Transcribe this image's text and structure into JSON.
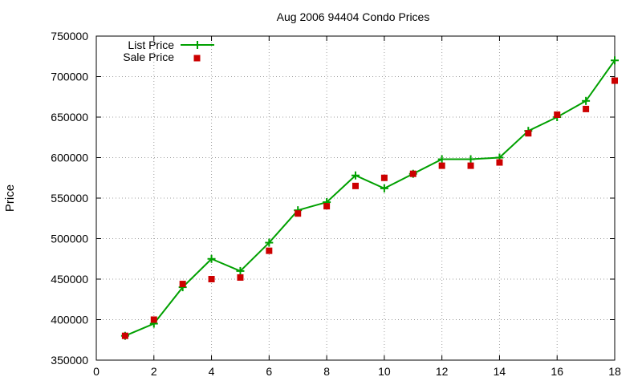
{
  "chart_data": {
    "type": "line",
    "title": "Aug 2006 94404 Condo Prices",
    "xlabel": "",
    "ylabel": "Price",
    "xlim": [
      0,
      18
    ],
    "ylim": [
      350000,
      750000
    ],
    "x_ticks": [
      0,
      2,
      4,
      6,
      8,
      10,
      12,
      14,
      16,
      18
    ],
    "y_ticks": [
      350000,
      400000,
      450000,
      500000,
      550000,
      600000,
      650000,
      700000,
      750000
    ],
    "grid": true,
    "legend_position": "top-left",
    "x": [
      1,
      2,
      3,
      4,
      5,
      6,
      7,
      8,
      9,
      10,
      11,
      12,
      13,
      14,
      15,
      16,
      17,
      18
    ],
    "series": [
      {
        "name": "List Price",
        "style": "line-with-plus-markers",
        "color": "#00a000",
        "values": [
          380000,
          395000,
          440000,
          475000,
          460000,
          495000,
          535000,
          545000,
          578000,
          562000,
          580000,
          598000,
          598000,
          600000,
          633000,
          650000,
          670000,
          720000
        ]
      },
      {
        "name": "Sale Price",
        "style": "square-markers",
        "color": "#cc0000",
        "values": [
          380000,
          400000,
          444000,
          450000,
          452000,
          485000,
          531000,
          540000,
          565000,
          575000,
          580000,
          590000,
          590000,
          594000,
          630000,
          653000,
          660000,
          695000
        ]
      }
    ]
  }
}
